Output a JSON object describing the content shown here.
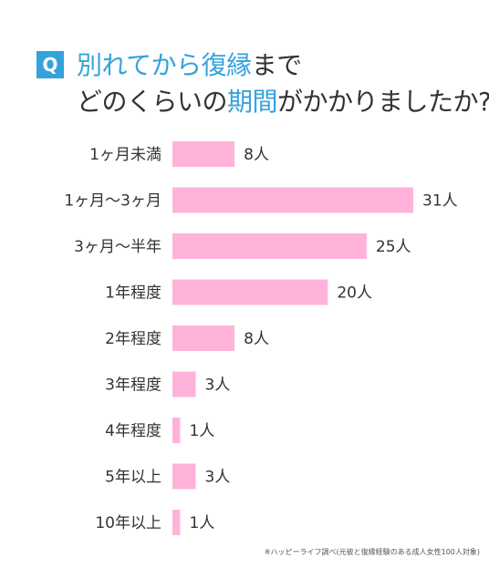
{
  "header": {
    "badge": "Q",
    "line1_part1": "別れてから",
    "line1_part2": "復縁",
    "line1_part3": "まで",
    "line2_part1": "どのくらいの",
    "line2_part2": "期間",
    "line2_part3": "がかかりましたか?"
  },
  "colors": {
    "accent": "#34a2dc",
    "bar": "#ffb3da",
    "text": "#333333"
  },
  "unit": "人",
  "chart_data": {
    "type": "bar",
    "orientation": "horizontal",
    "categories": [
      "1ヶ月未満",
      "1ヶ月〜3ヶ月",
      "3ヶ月〜半年",
      "1年程度",
      "2年程度",
      "3年程度",
      "4年程度",
      "5年以上",
      "10年以上"
    ],
    "values": [
      8,
      31,
      25,
      20,
      8,
      3,
      1,
      3,
      1
    ],
    "value_labels": [
      "8人",
      "31人",
      "25人",
      "20人",
      "8人",
      "3人",
      "1人",
      "3人",
      "1人"
    ],
    "xlim": [
      0,
      31
    ],
    "grid": false,
    "legend": "none"
  },
  "footnote": "※ハッピーライフ調べ(元彼と復縁経験のある成人女性100人対象)"
}
